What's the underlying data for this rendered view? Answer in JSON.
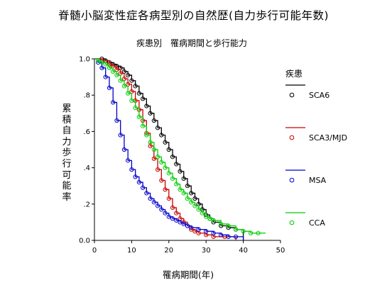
{
  "title": "脊髄小脳変性症各病型別の自然歴(自力歩行可能年数)",
  "subtitle": "疾患別　罹病期間と歩行能力",
  "chart_data": {
    "type": "line",
    "title": "疾患別　罹病期間と歩行能力",
    "xlabel": "罹病期間(年)",
    "ylabel": "累積自力歩行可能率",
    "xlim": [
      0,
      50
    ],
    "ylim": [
      0,
      1
    ],
    "x_ticks": [
      "0",
      "10",
      "20",
      "30",
      "40",
      "50"
    ],
    "y_ticks": [
      "0.0",
      ".2",
      ".4",
      ".6",
      ".8",
      "1.0"
    ],
    "grid": false,
    "legend": {
      "title": "疾患",
      "placement": "right",
      "labels": [
        "SCA6",
        "SCA3/MJD",
        "MSA",
        "CCA"
      ]
    },
    "series": [
      {
        "name": "SCA6",
        "color": "#000000",
        "points": [
          [
            0,
            1.0
          ],
          [
            2,
            1.0
          ],
          [
            3,
            0.99
          ],
          [
            4,
            0.98
          ],
          [
            5,
            0.97
          ],
          [
            6,
            0.96
          ],
          [
            7,
            0.95
          ],
          [
            8,
            0.93
          ],
          [
            9,
            0.91
          ],
          [
            10,
            0.88
          ],
          [
            11,
            0.85
          ],
          [
            12,
            0.81
          ],
          [
            13,
            0.78
          ],
          [
            14,
            0.74
          ],
          [
            15,
            0.7
          ],
          [
            16,
            0.66
          ],
          [
            17,
            0.62
          ],
          [
            18,
            0.58
          ],
          [
            19,
            0.54
          ],
          [
            20,
            0.5
          ],
          [
            21,
            0.46
          ],
          [
            22,
            0.42
          ],
          [
            23,
            0.38
          ],
          [
            24,
            0.34
          ],
          [
            25,
            0.3
          ],
          [
            26,
            0.26
          ],
          [
            27,
            0.23
          ],
          [
            28,
            0.2
          ],
          [
            29,
            0.17
          ],
          [
            30,
            0.14
          ],
          [
            31,
            0.12
          ],
          [
            32,
            0.1
          ],
          [
            34,
            0.08
          ],
          [
            36,
            0.07
          ],
          [
            38,
            0.06
          ],
          [
            40,
            0.0
          ]
        ]
      },
      {
        "name": "SCA3/MJD",
        "color": "#cc0000",
        "points": [
          [
            0,
            1.0
          ],
          [
            2,
            0.99
          ],
          [
            4,
            0.97
          ],
          [
            5,
            0.96
          ],
          [
            6,
            0.94
          ],
          [
            7,
            0.92
          ],
          [
            8,
            0.89
          ],
          [
            9,
            0.86
          ],
          [
            10,
            0.82
          ],
          [
            11,
            0.77
          ],
          [
            12,
            0.72
          ],
          [
            13,
            0.66
          ],
          [
            14,
            0.59
          ],
          [
            15,
            0.52
          ],
          [
            16,
            0.45
          ],
          [
            17,
            0.39
          ],
          [
            18,
            0.33
          ],
          [
            19,
            0.28
          ],
          [
            20,
            0.23
          ],
          [
            21,
            0.18
          ],
          [
            22,
            0.15
          ],
          [
            23,
            0.12
          ],
          [
            24,
            0.1
          ],
          [
            25,
            0.08
          ],
          [
            26,
            0.06
          ],
          [
            27,
            0.05
          ],
          [
            28,
            0.04
          ],
          [
            30,
            0.03
          ],
          [
            32,
            0.02
          ],
          [
            35,
            0.02
          ],
          [
            38,
            0.0
          ]
        ]
      },
      {
        "name": "MSA",
        "color": "#0000cc",
        "points": [
          [
            0,
            1.0
          ],
          [
            1,
            0.98
          ],
          [
            2,
            0.95
          ],
          [
            3,
            0.9
          ],
          [
            4,
            0.84
          ],
          [
            5,
            0.76
          ],
          [
            6,
            0.66
          ],
          [
            7,
            0.58
          ],
          [
            8,
            0.5
          ],
          [
            9,
            0.44
          ],
          [
            10,
            0.39
          ],
          [
            11,
            0.35
          ],
          [
            12,
            0.32
          ],
          [
            13,
            0.29
          ],
          [
            14,
            0.26
          ],
          [
            15,
            0.23
          ],
          [
            16,
            0.21
          ],
          [
            17,
            0.19
          ],
          [
            18,
            0.17
          ],
          [
            19,
            0.15
          ],
          [
            20,
            0.13
          ],
          [
            21,
            0.12
          ],
          [
            22,
            0.11
          ],
          [
            23,
            0.1
          ],
          [
            24,
            0.09
          ],
          [
            25,
            0.08
          ],
          [
            26,
            0.07
          ],
          [
            28,
            0.06
          ],
          [
            30,
            0.05
          ],
          [
            32,
            0.04
          ],
          [
            34,
            0.03
          ],
          [
            36,
            0.02
          ],
          [
            38,
            0.02
          ],
          [
            40,
            0.0
          ]
        ]
      },
      {
        "name": "CCA",
        "color": "#00cc00",
        "points": [
          [
            0,
            1.0
          ],
          [
            1,
            0.99
          ],
          [
            2,
            0.98
          ],
          [
            3,
            0.97
          ],
          [
            4,
            0.95
          ],
          [
            5,
            0.93
          ],
          [
            6,
            0.91
          ],
          [
            7,
            0.88
          ],
          [
            8,
            0.85
          ],
          [
            9,
            0.81
          ],
          [
            10,
            0.77
          ],
          [
            11,
            0.73
          ],
          [
            12,
            0.68
          ],
          [
            13,
            0.63
          ],
          [
            14,
            0.58
          ],
          [
            15,
            0.54
          ],
          [
            16,
            0.5
          ],
          [
            17,
            0.46
          ],
          [
            18,
            0.43
          ],
          [
            19,
            0.4
          ],
          [
            20,
            0.37
          ],
          [
            21,
            0.34
          ],
          [
            22,
            0.31
          ],
          [
            23,
            0.28
          ],
          [
            24,
            0.26
          ],
          [
            25,
            0.23
          ],
          [
            26,
            0.21
          ],
          [
            27,
            0.19
          ],
          [
            28,
            0.17
          ],
          [
            29,
            0.15
          ],
          [
            30,
            0.13
          ],
          [
            31,
            0.12
          ],
          [
            32,
            0.11
          ],
          [
            34,
            0.09
          ],
          [
            36,
            0.08
          ],
          [
            38,
            0.06
          ],
          [
            40,
            0.05
          ],
          [
            42,
            0.04
          ],
          [
            44,
            0.04
          ],
          [
            46,
            0.04
          ]
        ]
      }
    ]
  }
}
